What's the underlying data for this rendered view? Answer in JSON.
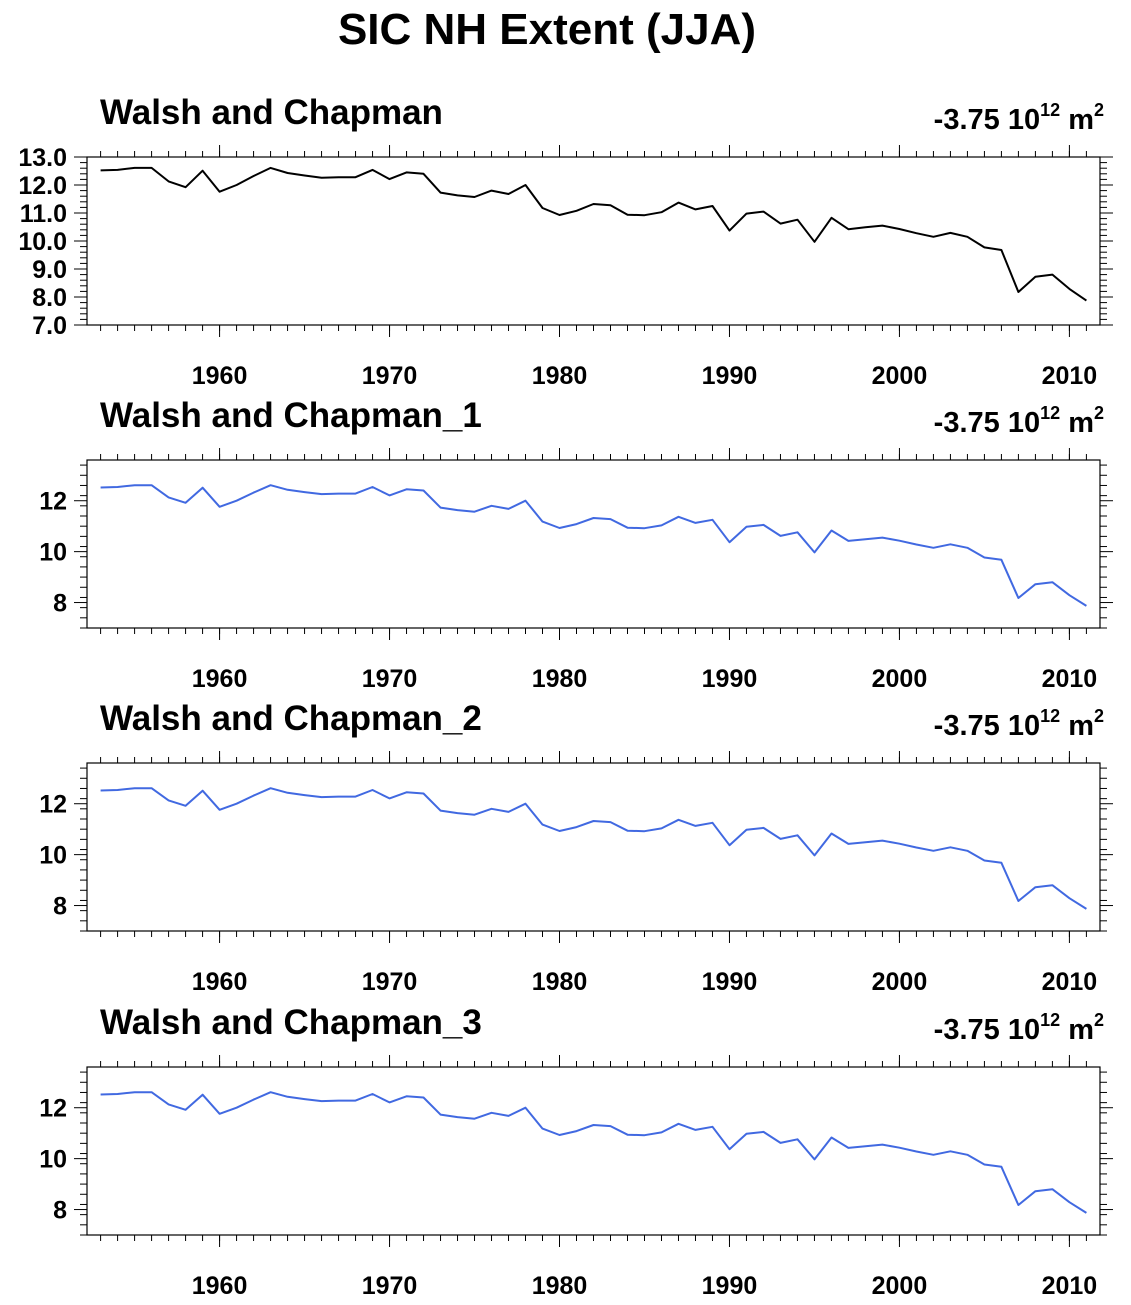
{
  "title": "SIC NH Extent (JJA)",
  "panels": [
    {
      "title": "Walsh and Chapman",
      "note_value": "-3.75",
      "note_base": "10",
      "note_exp": "12",
      "note_unit": "m",
      "note_unit_exp": "2"
    },
    {
      "title": "Walsh and Chapman_1",
      "note_value": "-3.75",
      "note_base": "10",
      "note_exp": "12",
      "note_unit": "m",
      "note_unit_exp": "2"
    },
    {
      "title": "Walsh and Chapman_2",
      "note_value": "-3.75",
      "note_base": "10",
      "note_exp": "12",
      "note_unit": "m",
      "note_unit_exp": "2"
    },
    {
      "title": "Walsh and Chapman_3",
      "note_value": "-3.75",
      "note_base": "10",
      "note_exp": "12",
      "note_unit": "m",
      "note_unit_exp": "2"
    }
  ],
  "colors": {
    "panel_0_line": "#000000",
    "panel_line": "#4169e1"
  },
  "chart_data": [
    {
      "type": "line",
      "title": "Walsh and Chapman",
      "x": [
        1953,
        1954,
        1955,
        1956,
        1957,
        1958,
        1959,
        1960,
        1961,
        1962,
        1963,
        1964,
        1965,
        1966,
        1967,
        1968,
        1969,
        1970,
        1971,
        1972,
        1973,
        1974,
        1975,
        1976,
        1977,
        1978,
        1979,
        1980,
        1981,
        1982,
        1983,
        1984,
        1985,
        1986,
        1987,
        1988,
        1989,
        1990,
        1991,
        1992,
        1993,
        1994,
        1995,
        1996,
        1997,
        1998,
        1999,
        2000,
        2001,
        2002,
        2003,
        2004,
        2005,
        2006,
        2007,
        2008,
        2009,
        2010,
        2011
      ],
      "series": [
        {
          "values": [
            12.52,
            12.54,
            12.61,
            12.61,
            12.13,
            11.92,
            12.51,
            11.76,
            12.0,
            12.32,
            12.61,
            12.43,
            12.34,
            12.26,
            12.28,
            12.28,
            12.54,
            12.21,
            12.45,
            12.4,
            11.73,
            11.63,
            11.57,
            11.8,
            11.68,
            12.0,
            11.18,
            10.93,
            11.08,
            11.32,
            11.28,
            10.94,
            10.92,
            11.03,
            11.37,
            11.13,
            11.25,
            10.37,
            10.98,
            11.05,
            10.62,
            10.76,
            9.97,
            10.83,
            10.42,
            10.49,
            10.55,
            10.43,
            10.28,
            10.15,
            10.29,
            10.15,
            9.77,
            9.68,
            8.18,
            8.72,
            8.8,
            8.29,
            7.87
          ]
        }
      ],
      "xticks": [
        1960,
        1970,
        1980,
        1990,
        2000,
        2010
      ],
      "yticks": [
        7.0,
        8.0,
        9.0,
        10.0,
        11.0,
        12.0,
        13.0
      ],
      "ytick_labels": [
        "7.0",
        "8.0",
        "9.0",
        "10.0",
        "11.0",
        "12.0",
        "13.0"
      ],
      "xlim": [
        1952.2,
        2011.8
      ],
      "ylim": [
        7.0,
        13.0
      ]
    },
    {
      "type": "line",
      "title": "Walsh and Chapman_1",
      "x": [
        1953,
        1954,
        1955,
        1956,
        1957,
        1958,
        1959,
        1960,
        1961,
        1962,
        1963,
        1964,
        1965,
        1966,
        1967,
        1968,
        1969,
        1970,
        1971,
        1972,
        1973,
        1974,
        1975,
        1976,
        1977,
        1978,
        1979,
        1980,
        1981,
        1982,
        1983,
        1984,
        1985,
        1986,
        1987,
        1988,
        1989,
        1990,
        1991,
        1992,
        1993,
        1994,
        1995,
        1996,
        1997,
        1998,
        1999,
        2000,
        2001,
        2002,
        2003,
        2004,
        2005,
        2006,
        2007,
        2008,
        2009,
        2010,
        2011
      ],
      "series": [
        {
          "values": [
            12.52,
            12.54,
            12.61,
            12.61,
            12.13,
            11.92,
            12.51,
            11.76,
            12.0,
            12.32,
            12.61,
            12.43,
            12.34,
            12.26,
            12.28,
            12.28,
            12.54,
            12.21,
            12.45,
            12.4,
            11.73,
            11.63,
            11.57,
            11.8,
            11.68,
            12.0,
            11.18,
            10.93,
            11.08,
            11.32,
            11.28,
            10.94,
            10.92,
            11.03,
            11.37,
            11.13,
            11.25,
            10.37,
            10.98,
            11.05,
            10.62,
            10.76,
            9.97,
            10.83,
            10.42,
            10.49,
            10.55,
            10.43,
            10.28,
            10.15,
            10.29,
            10.15,
            9.77,
            9.68,
            8.18,
            8.72,
            8.8,
            8.29,
            7.87
          ]
        }
      ],
      "xticks": [
        1960,
        1970,
        1980,
        1990,
        2000,
        2010
      ],
      "yticks": [
        8,
        10,
        12
      ],
      "ytick_labels": [
        "8",
        "10",
        "12"
      ],
      "xlim": [
        1952.2,
        2011.8
      ],
      "ylim": [
        7.0,
        13.6
      ]
    },
    {
      "type": "line",
      "title": "Walsh and Chapman_2",
      "x": [
        1953,
        1954,
        1955,
        1956,
        1957,
        1958,
        1959,
        1960,
        1961,
        1962,
        1963,
        1964,
        1965,
        1966,
        1967,
        1968,
        1969,
        1970,
        1971,
        1972,
        1973,
        1974,
        1975,
        1976,
        1977,
        1978,
        1979,
        1980,
        1981,
        1982,
        1983,
        1984,
        1985,
        1986,
        1987,
        1988,
        1989,
        1990,
        1991,
        1992,
        1993,
        1994,
        1995,
        1996,
        1997,
        1998,
        1999,
        2000,
        2001,
        2002,
        2003,
        2004,
        2005,
        2006,
        2007,
        2008,
        2009,
        2010,
        2011
      ],
      "series": [
        {
          "values": [
            12.52,
            12.54,
            12.61,
            12.61,
            12.13,
            11.92,
            12.51,
            11.76,
            12.0,
            12.32,
            12.61,
            12.43,
            12.34,
            12.26,
            12.28,
            12.28,
            12.54,
            12.21,
            12.45,
            12.4,
            11.73,
            11.63,
            11.57,
            11.8,
            11.68,
            12.0,
            11.18,
            10.93,
            11.08,
            11.32,
            11.28,
            10.94,
            10.92,
            11.03,
            11.37,
            11.13,
            11.25,
            10.37,
            10.98,
            11.05,
            10.62,
            10.76,
            9.97,
            10.83,
            10.42,
            10.49,
            10.55,
            10.43,
            10.28,
            10.15,
            10.29,
            10.15,
            9.77,
            9.68,
            8.18,
            8.72,
            8.8,
            8.29,
            7.87
          ]
        }
      ],
      "xticks": [
        1960,
        1970,
        1980,
        1990,
        2000,
        2010
      ],
      "yticks": [
        8,
        10,
        12
      ],
      "ytick_labels": [
        "8",
        "10",
        "12"
      ],
      "xlim": [
        1952.2,
        2011.8
      ],
      "ylim": [
        7.0,
        13.6
      ]
    },
    {
      "type": "line",
      "title": "Walsh and Chapman_3",
      "x": [
        1953,
        1954,
        1955,
        1956,
        1957,
        1958,
        1959,
        1960,
        1961,
        1962,
        1963,
        1964,
        1965,
        1966,
        1967,
        1968,
        1969,
        1970,
        1971,
        1972,
        1973,
        1974,
        1975,
        1976,
        1977,
        1978,
        1979,
        1980,
        1981,
        1982,
        1983,
        1984,
        1985,
        1986,
        1987,
        1988,
        1989,
        1990,
        1991,
        1992,
        1993,
        1994,
        1995,
        1996,
        1997,
        1998,
        1999,
        2000,
        2001,
        2002,
        2003,
        2004,
        2005,
        2006,
        2007,
        2008,
        2009,
        2010,
        2011
      ],
      "series": [
        {
          "values": [
            12.52,
            12.54,
            12.61,
            12.61,
            12.13,
            11.92,
            12.51,
            11.76,
            12.0,
            12.32,
            12.61,
            12.43,
            12.34,
            12.26,
            12.28,
            12.28,
            12.54,
            12.21,
            12.45,
            12.4,
            11.73,
            11.63,
            11.57,
            11.8,
            11.68,
            12.0,
            11.18,
            10.93,
            11.08,
            11.32,
            11.28,
            10.94,
            10.92,
            11.03,
            11.37,
            11.13,
            11.25,
            10.37,
            10.98,
            11.05,
            10.62,
            10.76,
            9.97,
            10.83,
            10.42,
            10.49,
            10.55,
            10.43,
            10.28,
            10.15,
            10.29,
            10.15,
            9.77,
            9.68,
            8.18,
            8.72,
            8.8,
            8.29,
            7.87
          ]
        }
      ],
      "xticks": [
        1960,
        1970,
        1980,
        1990,
        2000,
        2010
      ],
      "yticks": [
        8,
        10,
        12
      ],
      "ytick_labels": [
        "8",
        "10",
        "12"
      ],
      "xlim": [
        1952.2,
        2011.8
      ],
      "ylim": [
        7.0,
        13.6
      ]
    }
  ]
}
